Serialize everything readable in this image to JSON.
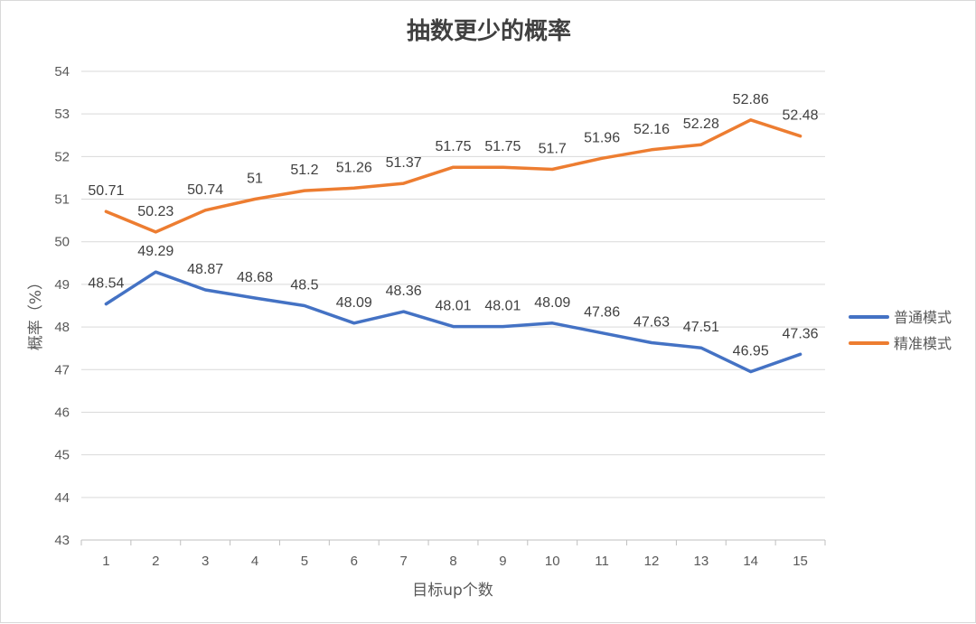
{
  "chart_data": {
    "type": "line",
    "title": "抽数更少的概率",
    "xlabel": "目标up个数",
    "ylabel": "概率（%）",
    "ylim": [
      43,
      54
    ],
    "y_ticks": [
      43,
      44,
      45,
      46,
      47,
      48,
      49,
      50,
      51,
      52,
      53,
      54
    ],
    "categories": [
      "1",
      "2",
      "3",
      "4",
      "5",
      "6",
      "7",
      "8",
      "9",
      "10",
      "11",
      "12",
      "13",
      "14",
      "15"
    ],
    "grid": true,
    "legend_position": "right",
    "series": [
      {
        "name": "普通模式",
        "color": "#4472c4",
        "values": [
          48.54,
          49.29,
          48.87,
          48.68,
          48.5,
          48.09,
          48.36,
          48.01,
          48.01,
          48.09,
          47.86,
          47.63,
          47.51,
          46.95,
          47.36
        ],
        "labels": [
          "48.54",
          "49.29",
          "48.87",
          "48.68",
          "48.5",
          "48.09",
          "48.36",
          "48.01",
          "48.01",
          "48.09",
          "47.86",
          "47.63",
          "47.51",
          "46.95",
          "47.36"
        ]
      },
      {
        "name": "精准模式",
        "color": "#ed7d31",
        "values": [
          50.71,
          50.23,
          50.74,
          51,
          51.2,
          51.26,
          51.37,
          51.75,
          51.75,
          51.7,
          51.96,
          52.16,
          52.28,
          52.86,
          52.48
        ],
        "labels": [
          "50.71",
          "50.23",
          "50.74",
          "51",
          "51.2",
          "51.26",
          "51.37",
          "51.75",
          "51.75",
          "51.7",
          "51.96",
          "52.16",
          "52.28",
          "52.86",
          "52.48"
        ]
      }
    ]
  }
}
